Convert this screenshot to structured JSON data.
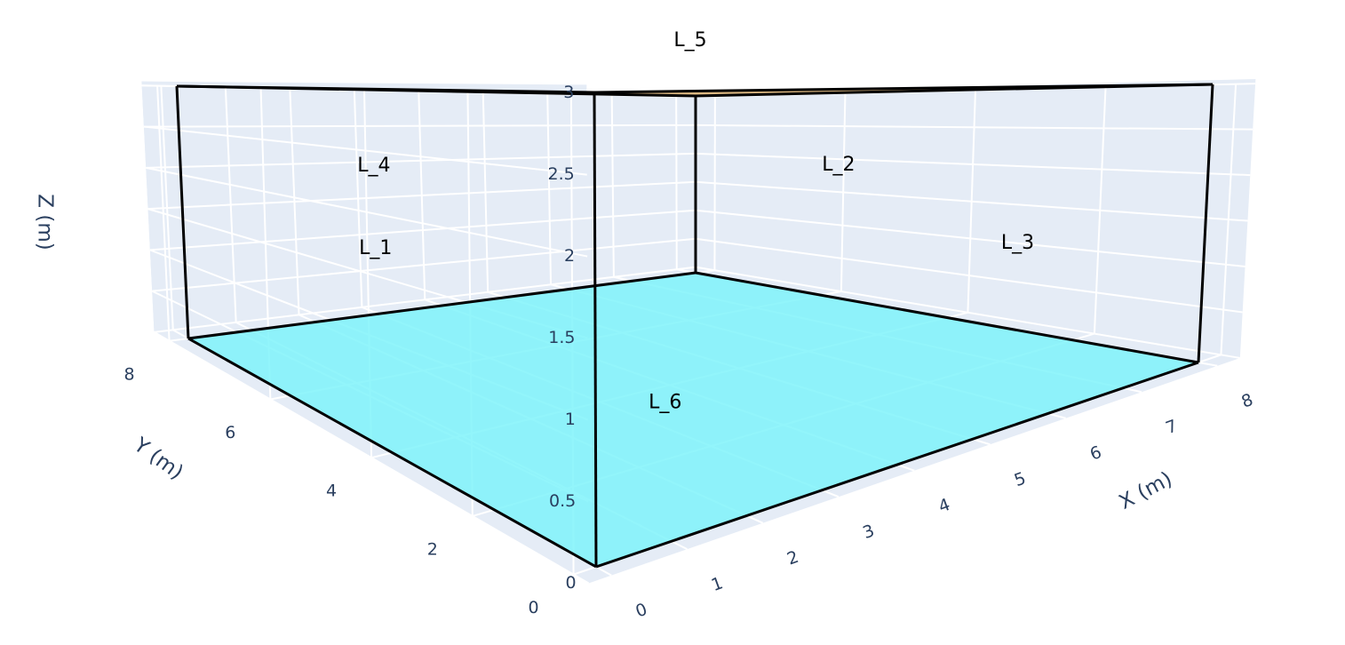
{
  "chart_data": {
    "type": "3d-surface",
    "axes": {
      "x": {
        "title": "X (m)",
        "range": [
          0,
          8
        ],
        "ticks": [
          "0",
          "1",
          "2",
          "3",
          "4",
          "5",
          "6",
          "7",
          "8"
        ]
      },
      "y": {
        "title": "Y (m)",
        "range": [
          0,
          8
        ],
        "ticks": [
          "0",
          "2",
          "4",
          "6",
          "8"
        ]
      },
      "z": {
        "title": "Z (m)",
        "range": [
          0,
          3
        ],
        "ticks": [
          "0",
          "0.5",
          "1",
          "1.5",
          "2",
          "2.5",
          "3"
        ]
      }
    },
    "surfaces": [
      {
        "label": "L_1",
        "plane": "x=0"
      },
      {
        "label": "L_2",
        "plane": "x=8"
      },
      {
        "label": "L_3",
        "plane": "y=0"
      },
      {
        "label": "L_4",
        "plane": "y=8"
      },
      {
        "label": "L_5",
        "plane": "z=3",
        "color": "#d9b37a"
      },
      {
        "label": "L_6",
        "plane": "z=0",
        "color": "#7ff3fa"
      }
    ],
    "box": {
      "x": [
        0,
        8
      ],
      "y": [
        0,
        8
      ],
      "z": [
        0,
        3
      ]
    },
    "colors": {
      "background": "#e5ecf6",
      "grid": "#ffffff",
      "edges": "#000000",
      "tick_text": "#2a3f5f"
    }
  }
}
